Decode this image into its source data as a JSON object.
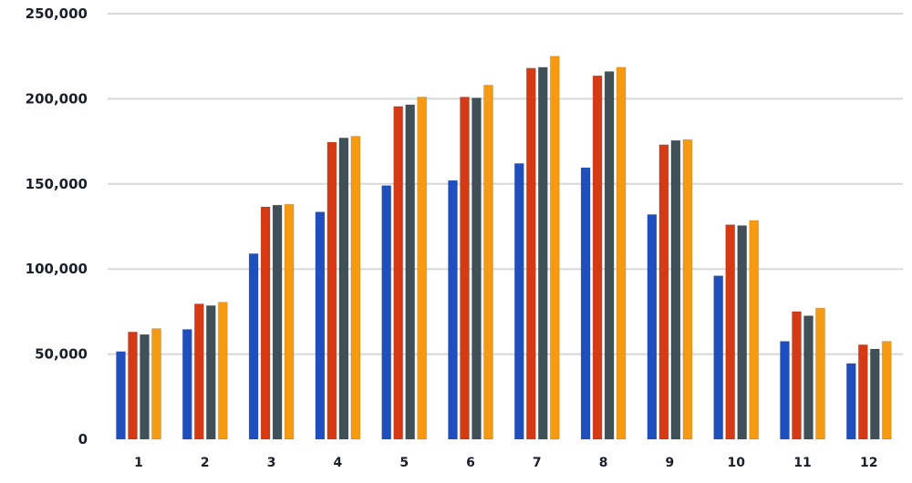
{
  "chart_data": {
    "type": "bar",
    "title": "",
    "xlabel": "",
    "ylabel": "",
    "categories": [
      "1",
      "2",
      "3",
      "4",
      "5",
      "6",
      "7",
      "8",
      "9",
      "10",
      "11",
      "12"
    ],
    "series": [
      {
        "color": "#1f4fbf",
        "values": [
          51500,
          64500,
          109000,
          133500,
          149000,
          152000,
          162000,
          159500,
          132000,
          96000,
          57500,
          44500
        ]
      },
      {
        "color": "#d63a14",
        "values": [
          63000,
          79500,
          136500,
          174500,
          195500,
          201000,
          218000,
          213500,
          173000,
          126000,
          75000,
          55500
        ]
      },
      {
        "color": "#3f5058",
        "values": [
          61500,
          78500,
          137500,
          177000,
          196500,
          200500,
          218500,
          216000,
          175500,
          125500,
          72500,
          53000
        ]
      },
      {
        "color": "#f69a12",
        "values": [
          65000,
          80500,
          138000,
          178000,
          201000,
          208000,
          225000,
          218500,
          176000,
          128500,
          77000,
          57500
        ]
      }
    ],
    "yticks": [
      "0",
      "50,000",
      "100,000",
      "150,000",
      "200,000",
      "250,000"
    ],
    "ylim": [
      0,
      250000
    ],
    "grid": true,
    "legend": "none"
  }
}
